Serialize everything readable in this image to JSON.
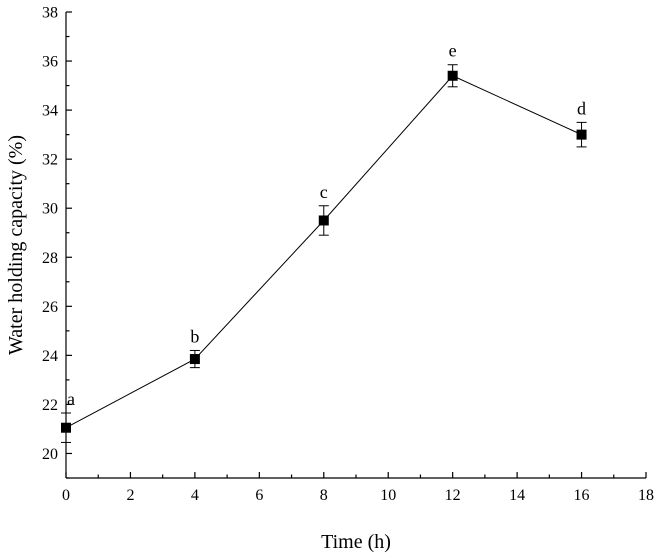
{
  "chart_data": {
    "type": "line",
    "xlabel": "Time (h)",
    "ylabel": "Water holding capacity (%)",
    "xlim": [
      0,
      18
    ],
    "ylim": [
      19,
      38
    ],
    "x_ticks": [
      0,
      2,
      4,
      6,
      8,
      10,
      12,
      14,
      16,
      18
    ],
    "y_ticks": [
      20,
      22,
      24,
      26,
      28,
      30,
      32,
      34,
      36,
      38
    ],
    "grid": false,
    "series": [
      {
        "x": [
          0,
          4,
          8,
          12,
          16
        ],
        "values": [
          21.05,
          23.85,
          29.5,
          35.4,
          33.0
        ],
        "error": [
          0.6,
          0.35,
          0.6,
          0.45,
          0.5
        ],
        "labels": [
          "a",
          "b",
          "c",
          "e",
          "d"
        ],
        "marker": "square",
        "color": "#000000"
      }
    ]
  }
}
